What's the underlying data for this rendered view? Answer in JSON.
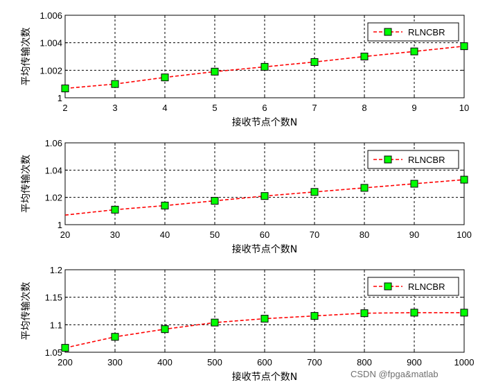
{
  "chart_data": [
    {
      "type": "line",
      "xlabel": "接收节点个数N",
      "ylabel": "平均传输次数",
      "x": [
        2,
        3,
        4,
        5,
        6,
        7,
        8,
        9,
        10
      ],
      "xlim": [
        2,
        10
      ],
      "xticks": [
        "2",
        "3",
        "4",
        "5",
        "6",
        "7",
        "8",
        "9",
        "10"
      ],
      "ylim": [
        1,
        1.006
      ],
      "yticks": [
        "1",
        "1.002",
        "1.004",
        "1.006"
      ],
      "grid": true,
      "legend_position": "top-right",
      "series": [
        {
          "name": "RLNCBR",
          "color": "#ff0000",
          "marker_color": "#00ff00",
          "x": [
            2,
            3,
            4,
            5,
            6,
            7,
            8,
            9,
            10
          ],
          "values": [
            1.00068,
            1.001,
            1.00148,
            1.0019,
            1.00225,
            1.0026,
            1.003,
            1.00337,
            1.00375
          ],
          "markers": [
            2,
            3,
            4,
            5,
            6,
            7,
            8,
            9,
            10
          ]
        }
      ]
    },
    {
      "type": "line",
      "xlabel": "接收节点个数N",
      "ylabel": "平均传输次数",
      "x": [
        20,
        30,
        40,
        50,
        60,
        70,
        80,
        90,
        100
      ],
      "xlim": [
        20,
        100
      ],
      "xticks": [
        "20",
        "30",
        "40",
        "50",
        "60",
        "70",
        "80",
        "90",
        "100"
      ],
      "ylim": [
        1,
        1.06
      ],
      "yticks": [
        "1",
        "1.02",
        "1.04",
        "1.06"
      ],
      "grid": true,
      "legend_position": "top-right",
      "series": [
        {
          "name": "RLNCBR",
          "color": "#ff0000",
          "marker_color": "#00ff00",
          "x": [
            20,
            30,
            40,
            50,
            60,
            70,
            80,
            90,
            100
          ],
          "values": [
            1.007,
            1.011,
            1.014,
            1.0175,
            1.021,
            1.024,
            1.027,
            1.03,
            1.033
          ],
          "markers": [
            30,
            40,
            50,
            60,
            70,
            80,
            90,
            100
          ]
        }
      ]
    },
    {
      "type": "line",
      "xlabel": "接收节点个数N",
      "ylabel": "平均传输次数",
      "x": [
        200,
        300,
        400,
        500,
        600,
        700,
        800,
        900,
        1000
      ],
      "xlim": [
        200,
        1000
      ],
      "xticks": [
        "200",
        "300",
        "400",
        "500",
        "600",
        "700",
        "800",
        "900",
        "1000"
      ],
      "ylim": [
        1.05,
        1.2
      ],
      "yticks": [
        "1.05",
        "1.1",
        "1.15",
        "1.2"
      ],
      "grid": true,
      "legend_position": "top-right",
      "series": [
        {
          "name": "RLNCBR",
          "color": "#ff0000",
          "marker_color": "#00ff00",
          "x": [
            200,
            300,
            400,
            500,
            600,
            700,
            800,
            900,
            1000
          ],
          "values": [
            1.058,
            1.078,
            1.092,
            1.104,
            1.111,
            1.116,
            1.121,
            1.122,
            1.122
          ],
          "markers": [
            200,
            300,
            400,
            500,
            600,
            700,
            800,
            900,
            1000
          ]
        }
      ]
    }
  ],
  "watermark": "CSDN @fpga&matlab"
}
